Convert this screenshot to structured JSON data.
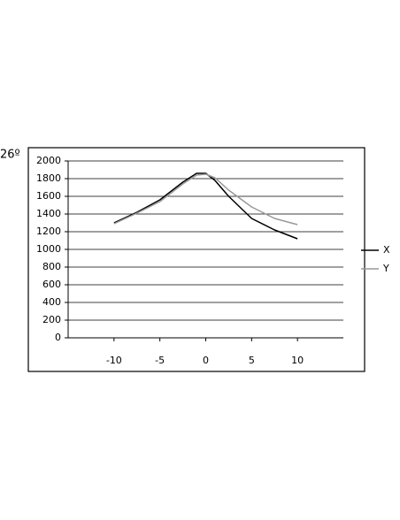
{
  "chart_data": {
    "type": "line",
    "annotation": "26º",
    "x": [
      -10,
      -7.5,
      -5,
      -2.5,
      -1,
      0,
      1,
      2.5,
      5,
      7.5,
      10
    ],
    "series": [
      {
        "name": "X",
        "color": "#000000",
        "values": [
          1300,
          1420,
          1560,
          1760,
          1860,
          1860,
          1780,
          1600,
          1350,
          1220,
          1120
        ]
      },
      {
        "name": "Y",
        "color": "#999999",
        "values": [
          1290,
          1410,
          1540,
          1740,
          1840,
          1850,
          1810,
          1670,
          1480,
          1350,
          1280
        ]
      }
    ],
    "xlim": [
      -15,
      15
    ],
    "xticks": [
      -10,
      -5,
      0,
      5,
      10
    ],
    "ylim": [
      0,
      2000
    ],
    "yticks": [
      0,
      200,
      400,
      600,
      800,
      1000,
      1200,
      1400,
      1600,
      1800,
      2000
    ],
    "grid": true,
    "legend": "right"
  }
}
